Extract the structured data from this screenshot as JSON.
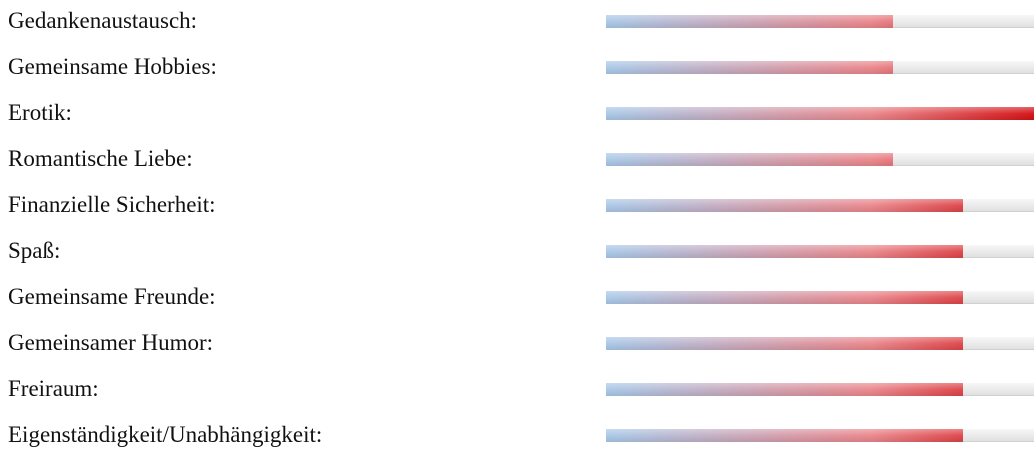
{
  "colors": {
    "fill_start": "#a8c8e8",
    "fill_mid": "#e9858a",
    "fill_end": "#d40f12",
    "track": "#ececec"
  },
  "ratings": [
    {
      "label": "Gedankenaustausch:",
      "level": 0.67
    },
    {
      "label": "Gemeinsame Hobbies:",
      "level": 0.67
    },
    {
      "label": "Erotik:",
      "level": 1.0
    },
    {
      "label": "Romantische Liebe:",
      "level": 0.67
    },
    {
      "label": "Finanzielle Sicherheit:",
      "level": 0.835
    },
    {
      "label": "Spaß:",
      "level": 0.835
    },
    {
      "label": "Gemeinsame Freunde:",
      "level": 0.835
    },
    {
      "label": "Gemeinsamer Humor:",
      "level": 0.835
    },
    {
      "label": "Freiraum:",
      "level": 0.835
    },
    {
      "label": "Eigenständigkeit/Unabhängigkeit:",
      "level": 0.835
    }
  ]
}
